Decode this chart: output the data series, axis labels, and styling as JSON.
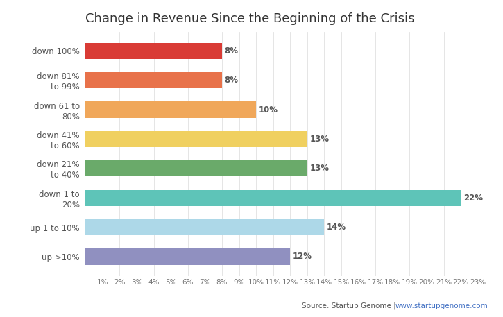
{
  "title": "Change in Revenue Since the Beginning of the Crisis",
  "categories": [
    "down 100%",
    "down 81%\nto 99%",
    "down 61 to\n80%",
    "down 41%\nto 60%",
    "down 21%\nto 40%",
    "down 1 to\n20%",
    "up 1 to 10%",
    "up >10%"
  ],
  "values": [
    8,
    8,
    10,
    13,
    13,
    22,
    14,
    12
  ],
  "bar_colors": [
    "#d93b35",
    "#e8724a",
    "#f0a75a",
    "#f0d060",
    "#6aaa6a",
    "#5ec4b8",
    "#add8e8",
    "#9090c0"
  ],
  "xlim": [
    0,
    23
  ],
  "xticks": [
    1,
    2,
    3,
    4,
    5,
    6,
    7,
    8,
    9,
    10,
    11,
    12,
    13,
    14,
    15,
    16,
    17,
    18,
    19,
    20,
    21,
    22,
    23
  ],
  "source_text": "Source: Startup Genome | ",
  "source_link": "www.startupgenome.com",
  "background_color": "#ffffff",
  "title_fontsize": 13,
  "label_fontsize": 8.5,
  "tick_fontsize": 7.5,
  "value_fontsize": 8.5
}
